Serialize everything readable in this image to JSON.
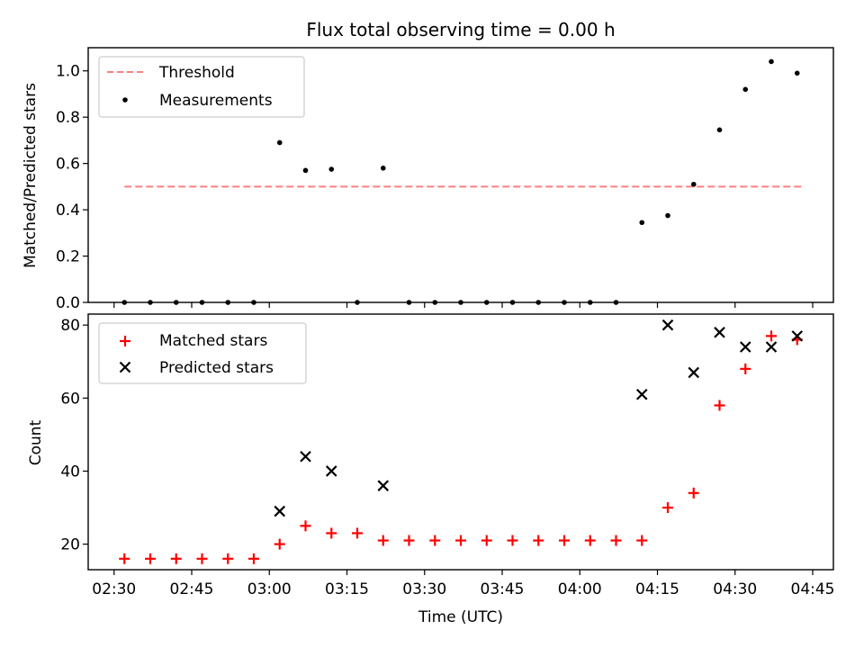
{
  "chart_data": [
    {
      "type": "scatter",
      "title": "Flux total observing time = 0.00 h",
      "ylabel": "Matched/Predicted stars",
      "xlabel": "",
      "xlim": [
        "02:25",
        "04:49"
      ],
      "ylim": [
        0,
        1.1
      ],
      "yticks": [
        0.0,
        0.2,
        0.4,
        0.6,
        0.8,
        1.0
      ],
      "ytick_labels": [
        "0.0",
        "0.2",
        "0.4",
        "0.6",
        "0.8",
        "1.0"
      ],
      "legend_position": "top-left",
      "threshold": {
        "name": "Threshold",
        "value": 0.5,
        "x_range": [
          "02:32",
          "04:43"
        ],
        "color": "#ff7f7f",
        "style": "dashed"
      },
      "series": [
        {
          "name": "Measurements",
          "color": "#000000",
          "marker": "dot",
          "x": [
            "02:32",
            "02:37",
            "02:42",
            "02:47",
            "02:52",
            "02:57",
            "03:02",
            "03:07",
            "03:12",
            "03:17",
            "03:22",
            "03:27",
            "03:32",
            "03:37",
            "03:42",
            "03:47",
            "03:52",
            "03:57",
            "04:02",
            "04:07",
            "04:12",
            "04:17",
            "04:22",
            "04:27",
            "04:32",
            "04:37",
            "04:42"
          ],
          "y": [
            0.0,
            0.0,
            0.0,
            0.0,
            0.0,
            0.0,
            0.69,
            0.57,
            0.575,
            0.0,
            0.58,
            0.0,
            0.0,
            0.0,
            0.0,
            0.0,
            0.0,
            0.0,
            0.0,
            0.0,
            0.345,
            0.375,
            0.51,
            0.745,
            0.92,
            1.04,
            0.99
          ]
        }
      ]
    },
    {
      "type": "scatter",
      "title": "",
      "xlabel": "Time (UTC)",
      "ylabel": "Count",
      "xlim": [
        "02:25",
        "04:49"
      ],
      "ylim": [
        13,
        83
      ],
      "yticks": [
        20,
        40,
        60,
        80
      ],
      "ytick_labels": [
        "20",
        "40",
        "60",
        "80"
      ],
      "xticks": [
        "02:30",
        "02:45",
        "03:00",
        "03:15",
        "03:30",
        "03:45",
        "04:00",
        "04:15",
        "04:30",
        "04:45"
      ],
      "legend_position": "top-left",
      "series": [
        {
          "name": "Matched stars",
          "color": "#ff0000",
          "marker": "plus",
          "x": [
            "02:32",
            "02:37",
            "02:42",
            "02:47",
            "02:52",
            "02:57",
            "03:02",
            "03:07",
            "03:12",
            "03:17",
            "03:22",
            "03:27",
            "03:32",
            "03:37",
            "03:42",
            "03:47",
            "03:52",
            "03:57",
            "04:02",
            "04:07",
            "04:12",
            "04:17",
            "04:22",
            "04:27",
            "04:32",
            "04:37",
            "04:42"
          ],
          "y": [
            16,
            16,
            16,
            16,
            16,
            16,
            20,
            25,
            23,
            23,
            21,
            21,
            21,
            21,
            21,
            21,
            21,
            21,
            21,
            21,
            21,
            30,
            34,
            58,
            68,
            77,
            76
          ]
        },
        {
          "name": "Predicted stars",
          "color": "#000000",
          "marker": "x",
          "x": [
            "03:02",
            "03:07",
            "03:12",
            "03:22",
            "04:12",
            "04:17",
            "04:22",
            "04:27",
            "04:32",
            "04:37",
            "04:42"
          ],
          "y": [
            29,
            44,
            40,
            36,
            61,
            80,
            67,
            78,
            74,
            74,
            77
          ]
        }
      ]
    }
  ]
}
